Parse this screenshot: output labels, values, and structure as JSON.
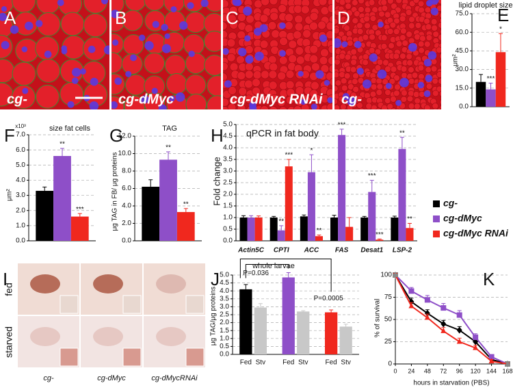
{
  "figure": {
    "panel_labels": [
      "A",
      "B",
      "C",
      "D",
      "E",
      "F",
      "G",
      "H",
      "I",
      "J",
      "K"
    ],
    "micrograph_labels": [
      "cg-",
      "cg-dMyc",
      "cg-dMyc RNAi",
      "cg-"
    ],
    "staining": {
      "rows": [
        "fed",
        "starved"
      ],
      "columns": [
        "cg-",
        "cg-dMyc",
        "cg-dMycRNAi"
      ]
    }
  },
  "chart_data": [
    {
      "type": "bar",
      "title": "lipid droplet size",
      "ylabel": "μm²",
      "categories": [
        null,
        null,
        null
      ],
      "values": [
        20,
        14,
        44
      ],
      "errors": [
        6,
        5,
        15
      ],
      "colors": [
        "#000000",
        "#8e4fc8",
        "#f0281e"
      ],
      "significance": [
        null,
        "***",
        "*"
      ],
      "ylim": [
        0,
        75
      ],
      "yticks": [
        {
          "value": 0,
          "label": "0.0"
        },
        {
          "value": 15,
          "label": "15.0"
        },
        {
          "value": 30,
          "label": "30.0"
        },
        {
          "value": 45,
          "label": "45.0"
        },
        {
          "value": 60,
          "label": "60.0"
        },
        {
          "value": 75,
          "label": "75.0"
        }
      ],
      "grid": true
    },
    {
      "type": "bar",
      "title": "size fat cells",
      "ylabel": "μm²",
      "y_multiplier": "x10³",
      "categories": [
        null,
        null,
        null
      ],
      "values": [
        3.3,
        5.6,
        1.6
      ],
      "errors": [
        0.25,
        0.5,
        0.2
      ],
      "colors": [
        "#000000",
        "#8e4fc8",
        "#f0281e"
      ],
      "significance": [
        null,
        "**",
        "***"
      ],
      "ylim": [
        0,
        7
      ],
      "yticks": [
        {
          "value": 0,
          "label": "0.0"
        },
        {
          "value": 1,
          "label": "1.0"
        },
        {
          "value": 2,
          "label": "2.0"
        },
        {
          "value": 3,
          "label": "3.0"
        },
        {
          "value": 4,
          "label": "4.0"
        },
        {
          "value": 5,
          "label": "5.0"
        },
        {
          "value": 6,
          "label": "6.0"
        },
        {
          "value": 7,
          "label": "7.0"
        }
      ],
      "grid": true
    },
    {
      "type": "bar",
      "title": "TAG",
      "ylabel": "μg TAG in FB/ μg proteins",
      "categories": [
        null,
        null,
        null
      ],
      "values": [
        6.2,
        9.3,
        3.3
      ],
      "errors": [
        0.8,
        0.9,
        0.4
      ],
      "colors": [
        "#000000",
        "#8e4fc8",
        "#f0281e"
      ],
      "significance": [
        null,
        "**",
        "**"
      ],
      "ylim": [
        0,
        12
      ],
      "yticks": [
        {
          "value": 0,
          "label": "0.0"
        },
        {
          "value": 2,
          "label": "2.0"
        },
        {
          "value": 4,
          "label": "4.0"
        },
        {
          "value": 6,
          "label": "6.0"
        },
        {
          "value": 8,
          "label": "8.0"
        },
        {
          "value": 10,
          "label": "10.0"
        },
        {
          "value": 12,
          "label": "12.0"
        }
      ],
      "grid": true
    },
    {
      "type": "bar",
      "title": "qPCR in fat body",
      "ylabel": "Fold change",
      "categories": [
        "Actin5C",
        "CPTI",
        "ACC",
        "FAS",
        "Desat1",
        "LSP-2"
      ],
      "series": [
        {
          "name": "cg-",
          "color": "#000000",
          "values": [
            1.0,
            1.0,
            1.05,
            1.0,
            1.0,
            1.0
          ],
          "errors": [
            0.08,
            0.05,
            0.06,
            0.1,
            0.05,
            0.06
          ],
          "significance": [
            null,
            null,
            null,
            null,
            null,
            null
          ]
        },
        {
          "name": "cg-dMyc",
          "color": "#8e4fc8",
          "values": [
            1.0,
            0.45,
            2.95,
            4.55,
            2.1,
            3.95
          ],
          "errors": [
            0.08,
            0.2,
            0.75,
            0.25,
            0.5,
            0.5
          ],
          "significance": [
            null,
            "**",
            "*",
            "***",
            "***",
            "**"
          ]
        },
        {
          "name": "cg-dMyc RNAi",
          "color": "#f0281e",
          "values": [
            1.0,
            3.2,
            0.2,
            0.6,
            0.05,
            0.55
          ],
          "errors": [
            0.07,
            0.3,
            0.05,
            0.4,
            0.03,
            0.2
          ],
          "significance": [
            null,
            "***",
            "**",
            null,
            "***",
            "**"
          ]
        }
      ],
      "ylim": [
        0,
        5
      ],
      "yticks": [
        {
          "value": 0,
          "label": "0.0"
        },
        {
          "value": 0.5,
          "label": "0.5"
        },
        {
          "value": 1,
          "label": "1.0"
        },
        {
          "value": 1.5,
          "label": "1.5"
        },
        {
          "value": 2,
          "label": "2.0"
        },
        {
          "value": 2.5,
          "label": "2.5"
        },
        {
          "value": 3,
          "label": "3.0"
        },
        {
          "value": 3.5,
          "label": "3.5"
        },
        {
          "value": 4,
          "label": "4.0"
        },
        {
          "value": 4.5,
          "label": "4.5"
        },
        {
          "value": 5,
          "label": "5.0"
        }
      ],
      "grid": true,
      "legend": "right"
    },
    {
      "type": "bar",
      "title": "whole larvae",
      "ylabel": "μg TAG/μg proteins",
      "categories": [
        "Fed",
        "Stv",
        "Fed",
        "Stv",
        "Fed",
        "Stv"
      ],
      "values": [
        4.1,
        2.95,
        4.85,
        2.7,
        2.65,
        1.75
      ],
      "errors": [
        0.3,
        0.25,
        0.3,
        0.05,
        0.15,
        0.15
      ],
      "colors": [
        "#000000",
        "#c8c8c8",
        "#8e4fc8",
        "#c8c8c8",
        "#f0281e",
        "#c8c8c8"
      ],
      "annotations": [
        "P=0.036",
        "P=0.0005"
      ],
      "ylim": [
        0,
        5
      ],
      "yticks": [
        {
          "value": 0,
          "label": "0.0"
        },
        {
          "value": 0.5,
          "label": "0.5"
        },
        {
          "value": 1,
          "label": "1.0"
        },
        {
          "value": 1.5,
          "label": "1.5"
        },
        {
          "value": 2,
          "label": "2.0"
        },
        {
          "value": 2.5,
          "label": "2.5"
        },
        {
          "value": 3,
          "label": "3.0"
        },
        {
          "value": 3.5,
          "label": "3.5"
        },
        {
          "value": 4,
          "label": "4.0"
        },
        {
          "value": 4.5,
          "label": "4.5"
        },
        {
          "value": 5,
          "label": "5.0"
        }
      ],
      "grid": true
    },
    {
      "type": "line",
      "xlabel": "hours in starvation (PBS)",
      "ylabel": "% of survival",
      "x": [
        0,
        24,
        48,
        72,
        96,
        120,
        144,
        168
      ],
      "series": [
        {
          "name": "cg-",
          "color": "#000000",
          "marker": "diamond",
          "values": [
            100,
            70,
            57,
            45,
            38,
            25,
            5,
            0
          ],
          "errors": [
            2,
            4,
            4,
            4,
            4,
            4,
            2,
            1
          ]
        },
        {
          "name": "cg-dMyc",
          "color": "#8e4fc8",
          "marker": "square",
          "values": [
            100,
            82,
            72,
            63,
            55,
            30,
            8,
            0
          ],
          "errors": [
            2,
            4,
            5,
            5,
            5,
            4,
            2,
            1
          ]
        },
        {
          "name": "cg-dMyc RNAi",
          "color": "#f0281e",
          "marker": "triangle",
          "values": [
            100,
            65,
            52,
            37,
            25,
            18,
            3,
            0
          ],
          "errors": [
            2,
            4,
            4,
            4,
            4,
            3,
            2,
            1
          ]
        }
      ],
      "xlim": [
        0,
        168
      ],
      "xticks": [
        0,
        24,
        48,
        72,
        96,
        120,
        144,
        168
      ],
      "ylim": [
        0,
        100
      ],
      "yticks": [
        0,
        25,
        50,
        75,
        100
      ],
      "grid": true
    }
  ]
}
